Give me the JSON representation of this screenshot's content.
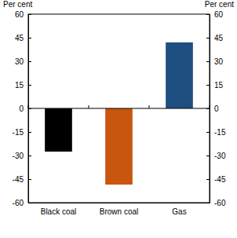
{
  "chart_data": {
    "type": "bar",
    "categories": [
      "Black coal",
      "Brown coal",
      "Gas"
    ],
    "values": [
      -27.5,
      -48.5,
      42
    ],
    "colors": [
      "#000000",
      "#c8560f",
      "#1f4e80"
    ],
    "ylabel": "Per cent",
    "y2label": "Per cent",
    "ylim": [
      -60,
      60
    ],
    "yticks": [
      -60,
      -45,
      -30,
      -15,
      0,
      15,
      30,
      45,
      60
    ],
    "y2lim": [
      -60,
      60
    ],
    "y2ticks": [
      -60,
      -45,
      -30,
      -15,
      0,
      15,
      30,
      45,
      60
    ],
    "grid": false
  }
}
